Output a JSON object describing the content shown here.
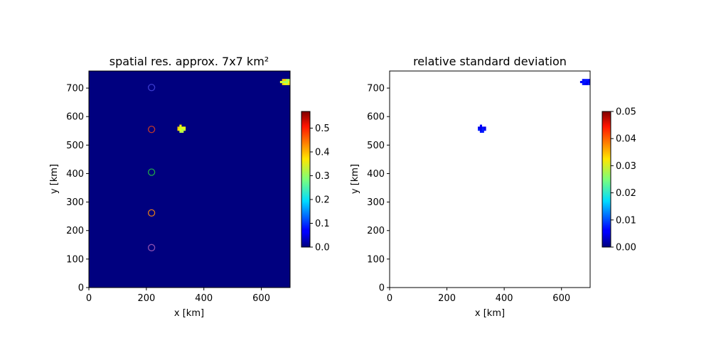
{
  "chart_data": [
    {
      "type": "heatmap",
      "title": "spatial res. approx. 7x7 km²",
      "xlabel": "x [km]",
      "ylabel": "y [km]",
      "xlim": [
        0,
        700
      ],
      "ylim": [
        0,
        760
      ],
      "xticks": [
        "0",
        "200",
        "400",
        "600"
      ],
      "yticks": [
        "0",
        "100",
        "200",
        "300",
        "400",
        "500",
        "600",
        "700"
      ],
      "colormap": "jet",
      "colorbar": {
        "range": [
          0,
          0.57
        ],
        "ticks": [
          "0.0",
          "0.1",
          "0.2",
          "0.3",
          "0.4",
          "0.5"
        ]
      },
      "grid": false,
      "background_value": 0.0,
      "typical_value": 0.22,
      "markers": [
        {
          "x": 218,
          "y": 702,
          "color": "#3b3bd0"
        },
        {
          "x": 218,
          "y": 555,
          "color": "#c0392b"
        },
        {
          "x": 218,
          "y": 405,
          "color": "#22a84a"
        },
        {
          "x": 218,
          "y": 262,
          "color": "#e07b1a"
        },
        {
          "x": 218,
          "y": 140,
          "color": "#8a4fb0"
        }
      ]
    },
    {
      "type": "heatmap",
      "title": "relative standard deviation",
      "xlabel": "x [km]",
      "ylabel": "y [km]",
      "xlim": [
        0,
        700
      ],
      "ylim": [
        0,
        760
      ],
      "xticks": [
        "0",
        "200",
        "400",
        "600"
      ],
      "yticks": [
        "0",
        "100",
        "200",
        "300",
        "400",
        "500",
        "600",
        "700"
      ],
      "colormap": "jet",
      "colorbar": {
        "range": [
          0,
          0.05
        ],
        "ticks": [
          "0.00",
          "0.01",
          "0.02",
          "0.03",
          "0.04",
          "0.05"
        ]
      },
      "grid": false,
      "missing_color": "#ffffff",
      "typical_value": 0.008
    }
  ],
  "colors": {
    "axes": "#000000",
    "background": "#ffffff",
    "missing": "#ffffff"
  }
}
